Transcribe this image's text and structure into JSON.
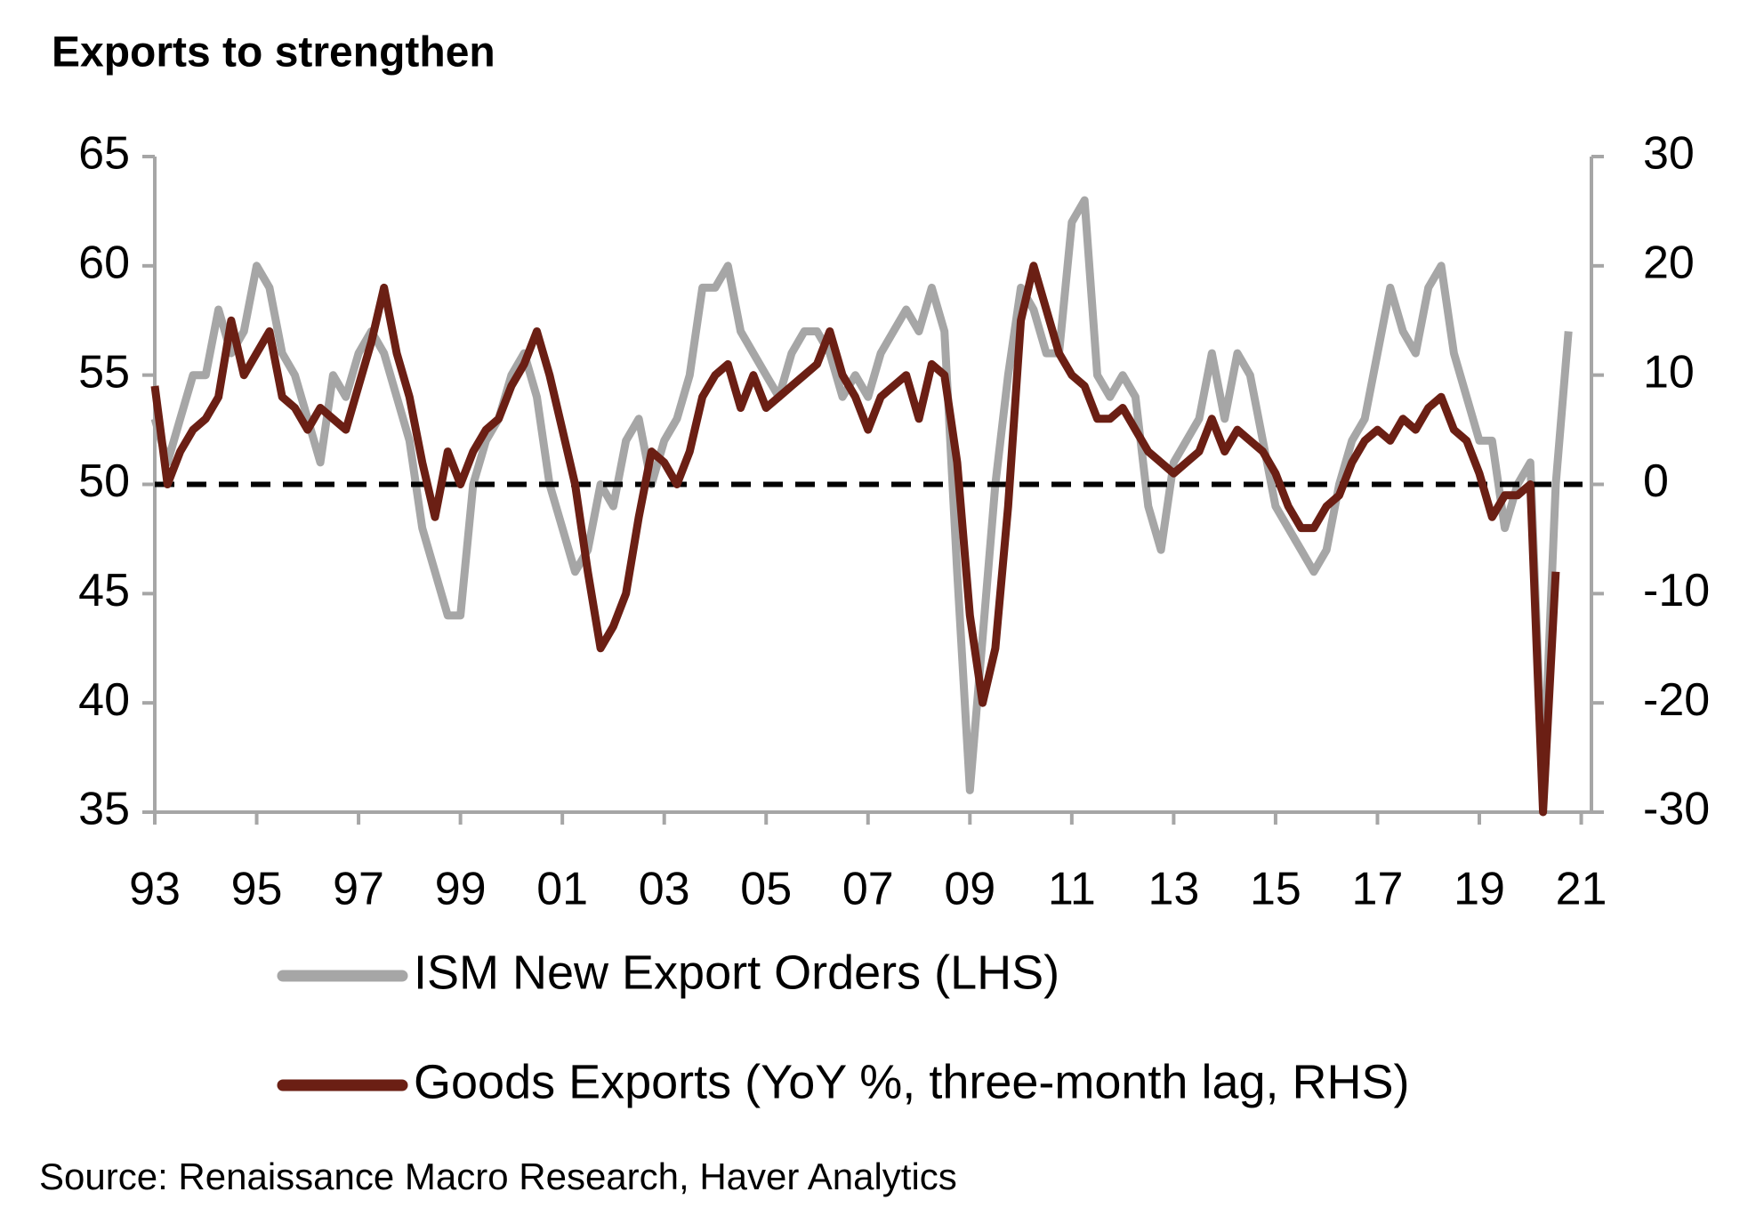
{
  "chart_data": {
    "type": "line",
    "title": "Exports to strengthen",
    "source": "Source: Renaissance Macro Research, Haver Analytics",
    "x": [
      1993,
      1993.25,
      1993.5,
      1993.75,
      1994,
      1994.25,
      1994.5,
      1994.75,
      1995,
      1995.25,
      1995.5,
      1995.75,
      1996,
      1996.25,
      1996.5,
      1996.75,
      1997,
      1997.25,
      1997.5,
      1997.75,
      1998,
      1998.25,
      1998.5,
      1998.75,
      1999,
      1999.25,
      1999.5,
      1999.75,
      2000,
      2000.25,
      2000.5,
      2000.75,
      2001,
      2001.25,
      2001.5,
      2001.75,
      2002,
      2002.25,
      2002.5,
      2002.75,
      2003,
      2003.25,
      2003.5,
      2003.75,
      2004,
      2004.25,
      2004.5,
      2004.75,
      2005,
      2005.25,
      2005.5,
      2005.75,
      2006,
      2006.25,
      2006.5,
      2006.75,
      2007,
      2007.25,
      2007.5,
      2007.75,
      2008,
      2008.25,
      2008.5,
      2008.75,
      2009,
      2009.25,
      2009.5,
      2009.75,
      2010,
      2010.25,
      2010.5,
      2010.75,
      2011,
      2011.25,
      2011.5,
      2011.75,
      2012,
      2012.25,
      2012.5,
      2012.75,
      2013,
      2013.25,
      2013.5,
      2013.75,
      2014,
      2014.25,
      2014.5,
      2014.75,
      2015,
      2015.25,
      2015.5,
      2015.75,
      2016,
      2016.25,
      2016.5,
      2016.75,
      2017,
      2017.25,
      2017.5,
      2017.75,
      2018,
      2018.25,
      2018.5,
      2018.75,
      2019,
      2019.25,
      2019.5,
      2019.75,
      2020,
      2020.25,
      2020.5,
      2020.75
    ],
    "series": [
      {
        "name": "ISM New Export Orders (LHS)",
        "color": "#a6a6a6",
        "axis": "y",
        "values": [
          53,
          51,
          53,
          55,
          55,
          58,
          56,
          57,
          60,
          59,
          56,
          55,
          53,
          51,
          55,
          54,
          56,
          57,
          56,
          54,
          52,
          48,
          46,
          44,
          44,
          50,
          52,
          53,
          55,
          56,
          54,
          50,
          48,
          46,
          47,
          50,
          49,
          52,
          53,
          50,
          52,
          53,
          55,
          59,
          59,
          60,
          57,
          56,
          55,
          54,
          56,
          57,
          57,
          56,
          54,
          55,
          54,
          56,
          57,
          58,
          57,
          59,
          57,
          46,
          36,
          43,
          50,
          55,
          59,
          58,
          56,
          56,
          62,
          63,
          55,
          54,
          55,
          54,
          49,
          47,
          51,
          52,
          53,
          56,
          53,
          56,
          55,
          52,
          49,
          48,
          47,
          46,
          47,
          50,
          52,
          53,
          56,
          59,
          57,
          56,
          59,
          60,
          56,
          54,
          52,
          52,
          48,
          50,
          51,
          36,
          50,
          57
        ]
      },
      {
        "name": "Goods Exports (YoY %, three-month lag, RHS)",
        "color": "#6b1f14",
        "axis": "y2",
        "values": [
          9,
          0,
          3,
          5,
          6,
          8,
          15,
          10,
          12,
          14,
          8,
          7,
          5,
          7,
          6,
          5,
          9,
          13,
          18,
          12,
          8,
          2,
          -3,
          3,
          0,
          3,
          5,
          6,
          9,
          11,
          14,
          10,
          5,
          0,
          -8,
          -15,
          -13,
          -10,
          -3,
          3,
          2,
          0,
          3,
          8,
          10,
          11,
          7,
          10,
          7,
          8,
          9,
          10,
          11,
          14,
          10,
          8,
          5,
          8,
          9,
          10,
          6,
          11,
          10,
          2,
          -12,
          -20,
          -15,
          -2,
          15,
          20,
          16,
          12,
          10,
          9,
          6,
          6,
          7,
          5,
          3,
          2,
          1,
          2,
          3,
          6,
          3,
          5,
          4,
          3,
          1,
          -2,
          -4,
          -4,
          -2,
          -1,
          2,
          4,
          5,
          4,
          6,
          5,
          7,
          8,
          5,
          4,
          1,
          -3,
          -1,
          -1,
          0,
          -30,
          -8,
          null
        ]
      }
    ],
    "xlim": [
      1993,
      2021.2
    ],
    "xticks": [
      {
        "value": 1993,
        "label": "93"
      },
      {
        "value": 1995,
        "label": "95"
      },
      {
        "value": 1997,
        "label": "97"
      },
      {
        "value": 1999,
        "label": "99"
      },
      {
        "value": 2001,
        "label": "01"
      },
      {
        "value": 2003,
        "label": "03"
      },
      {
        "value": 2005,
        "label": "05"
      },
      {
        "value": 2007,
        "label": "07"
      },
      {
        "value": 2009,
        "label": "09"
      },
      {
        "value": 2011,
        "label": "11"
      },
      {
        "value": 2013,
        "label": "13"
      },
      {
        "value": 2015,
        "label": "15"
      },
      {
        "value": 2017,
        "label": "17"
      },
      {
        "value": 2019,
        "label": "19"
      },
      {
        "value": 2021,
        "label": "21"
      }
    ],
    "ylim": [
      35,
      65
    ],
    "yticks": [
      35,
      40,
      45,
      50,
      55,
      60,
      65
    ],
    "y2lim": [
      -30,
      30
    ],
    "y2ticks": [
      -30,
      -20,
      -10,
      0,
      10,
      20,
      30
    ],
    "hline": 50
  }
}
